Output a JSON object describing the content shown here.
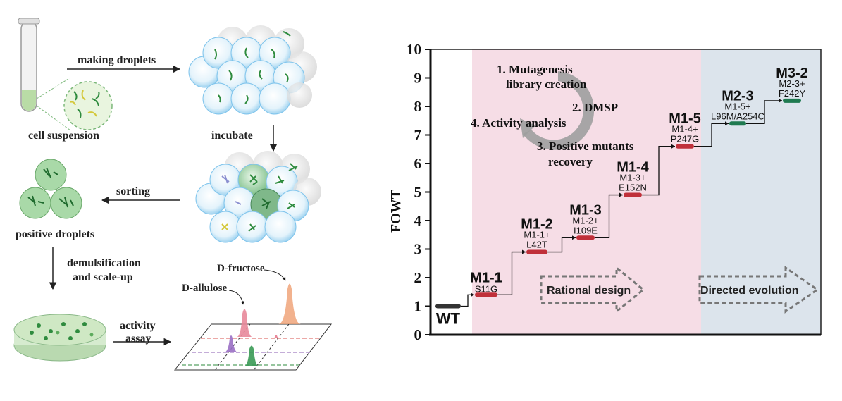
{
  "workflow": {
    "steps": {
      "making_droplets": "making droplets",
      "cell_suspension": "cell suspension",
      "incubate": "incubate",
      "sorting": "sorting",
      "positive_droplets": "positive droplets",
      "demulsification_line1": "demulsification",
      "demulsification_line2": "and scale-up",
      "activity_line1": "activity",
      "activity_line2": "assay"
    },
    "peaks": {
      "fructose": "D-fructose",
      "allulose": "D-allulose"
    },
    "colors": {
      "droplet_blue": "#7fc4ec",
      "cell_green": "#2e8b3e",
      "dish_green": "#cfe8c4",
      "peak_orange": "#f0a57a",
      "peak_pink": "#e8889a",
      "peak_purple": "#9a6fc4",
      "peak_green": "#3a9a55"
    }
  },
  "chart_data": {
    "type": "line",
    "ylabel": "FOWT",
    "ylim": [
      0,
      10
    ],
    "yticks": [
      "0",
      "1",
      "2",
      "3",
      "4",
      "5",
      "6",
      "7",
      "8",
      "9",
      "10"
    ],
    "series": [
      {
        "points": [
          {
            "name": "WT",
            "y": 1.0,
            "mutation": "",
            "color": "#333333"
          },
          {
            "name": "M1-1",
            "y": 1.4,
            "mutation": "S11G",
            "color": "#c0303a"
          },
          {
            "name": "M1-2",
            "y": 2.9,
            "mutation": "M1-1+ L42T",
            "color": "#c0303a"
          },
          {
            "name": "M1-3",
            "y": 3.4,
            "mutation": "M1-2+ I109E",
            "color": "#c0303a"
          },
          {
            "name": "M1-4",
            "y": 4.9,
            "mutation": "M1-3+ E152N",
            "color": "#c0303a"
          },
          {
            "name": "M1-5",
            "y": 6.6,
            "mutation": "M1-4+ P247G",
            "color": "#c0303a"
          },
          {
            "name": "M2-3",
            "y": 7.4,
            "mutation": "M1-5+ L96M/A254C",
            "color": "#1f7a50"
          },
          {
            "name": "M3-2",
            "y": 8.2,
            "mutation": "M2-3+ F242Y",
            "color": "#1f7a50"
          }
        ]
      }
    ],
    "regions": [
      {
        "label": "Rational design",
        "color": "#f6dde6"
      },
      {
        "label": "Directed evolution",
        "color": "#dce4ec"
      }
    ],
    "cycle": {
      "step1_line1": "1. Mutagenesis",
      "step1_line2": "library creation",
      "step2": "2. DMSP",
      "step3_line1": "3. Positive mutants",
      "step3_line2": "recovery",
      "step4": "4. Activity analysis"
    }
  }
}
